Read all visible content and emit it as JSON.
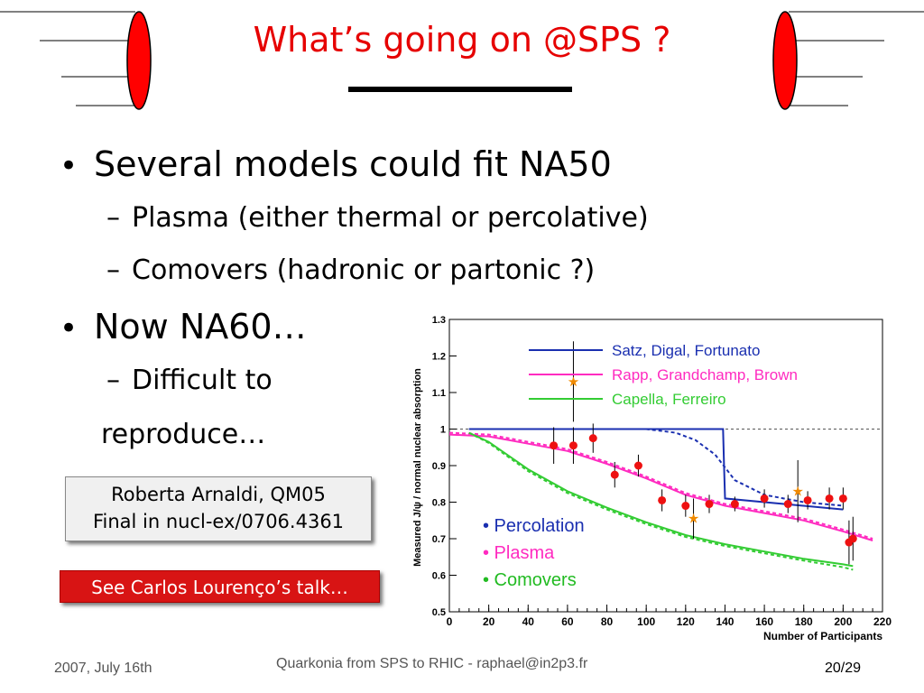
{
  "slide": {
    "title": "What’s going on @SPS ?",
    "bullets": [
      {
        "level": 1,
        "text": "Several models could fit NA50"
      },
      {
        "level": 2,
        "text": "Plasma (either thermal or percolative)"
      },
      {
        "level": 2,
        "text": "Comovers (hadronic or partonic ?)"
      },
      {
        "level": 1,
        "text": "Now NA60…"
      },
      {
        "level": 2,
        "text": "Difficult to"
      },
      {
        "level": 3,
        "text": "reproduce…"
      }
    ],
    "bullet_char": "•",
    "dash_char": "–",
    "reference": {
      "line1": "Roberta Arnaldi, QM05",
      "line2": "Final in nucl-ex/0706.4361"
    },
    "talk_button": "See Carlos Lourenço’s talk…",
    "footer": {
      "date": "2007, July 16th",
      "center": "Quarkonia from SPS to RHIC - raphael@in2p3.fr",
      "page": "20/29"
    },
    "colors": {
      "title": "#e60000",
      "accent_red": "#d81414"
    }
  },
  "chart_data": {
    "type": "scatter",
    "xlabel": "Number of Participants",
    "ylabel": "Measured J/ψ / normal nuclear absorption",
    "xlim": [
      0,
      220
    ],
    "ylim": [
      0.5,
      1.3
    ],
    "xticks": [
      "0",
      "20",
      "40",
      "60",
      "80",
      "100",
      "120",
      "140",
      "160",
      "180",
      "200",
      "220"
    ],
    "yticks": [
      "0.5",
      "0.6",
      "0.7",
      "0.8",
      "0.9",
      "1",
      "1.1",
      "1.2",
      "1.3"
    ],
    "reference_line": 1.0,
    "legend_models": [
      {
        "name": "Satz, Digal, Fortunato",
        "color": "#1a2fb0"
      },
      {
        "name": "Rapp, Grandchamp, Brown",
        "color": "#ff2bc0"
      },
      {
        "name": "Capella, Ferreiro",
        "color": "#33cc33"
      }
    ],
    "legend_labels": [
      {
        "text": "• Percolation",
        "color": "#1a2fb0"
      },
      {
        "text": "• Plasma",
        "color": "#ff2bc0"
      },
      {
        "text": "• Comovers",
        "color": "#22bb22"
      }
    ],
    "series": [
      {
        "name": "Satz, Digal, Fortunato",
        "color": "#1a2fb0",
        "x": [
          10,
          139,
          139.5,
          140,
          200
        ],
        "y": [
          1.0,
          1.0,
          0.9,
          0.81,
          0.78
        ]
      },
      {
        "color": "#1a2fb0",
        "dashed": true,
        "x": [
          10,
          60,
          100,
          115,
          125,
          135,
          145,
          160,
          180,
          200
        ],
        "y": [
          1.0,
          1.0,
          1.0,
          0.99,
          0.97,
          0.93,
          0.86,
          0.82,
          0.8,
          0.79
        ]
      },
      {
        "name": "Rapp, Grandchamp, Brown",
        "color": "#ff2bc0",
        "x": [
          0,
          20,
          40,
          60,
          80,
          100,
          120,
          140,
          160,
          180,
          200,
          215
        ],
        "y": [
          0.985,
          0.98,
          0.96,
          0.94,
          0.905,
          0.865,
          0.82,
          0.79,
          0.77,
          0.75,
          0.72,
          0.695
        ]
      },
      {
        "color": "#ff2bc0",
        "dashed": true,
        "x": [
          0,
          20,
          40,
          60,
          80,
          100,
          120,
          140,
          160,
          180,
          200,
          215
        ],
        "y": [
          0.99,
          0.985,
          0.965,
          0.945,
          0.91,
          0.87,
          0.825,
          0.795,
          0.775,
          0.755,
          0.725,
          0.7
        ]
      },
      {
        "name": "Capella, Ferreiro",
        "color": "#33cc33",
        "x": [
          10,
          20,
          40,
          60,
          80,
          100,
          120,
          140,
          160,
          180,
          200,
          205
        ],
        "y": [
          0.99,
          0.965,
          0.89,
          0.83,
          0.785,
          0.745,
          0.71,
          0.685,
          0.665,
          0.645,
          0.63,
          0.625
        ]
      },
      {
        "color": "#33cc33",
        "dashed": true,
        "x": [
          10,
          20,
          40,
          60,
          80,
          100,
          120,
          140,
          160,
          180,
          200,
          205
        ],
        "y": [
          0.99,
          0.962,
          0.885,
          0.825,
          0.78,
          0.74,
          0.705,
          0.68,
          0.66,
          0.64,
          0.622,
          0.615
        ]
      }
    ],
    "points_circles": [
      {
        "x": 53,
        "y": 0.955,
        "err": 0.05
      },
      {
        "x": 63,
        "y": 0.955,
        "err": 0.05
      },
      {
        "x": 73,
        "y": 0.975,
        "err": 0.04
      },
      {
        "x": 84,
        "y": 0.875,
        "err": 0.035
      },
      {
        "x": 96,
        "y": 0.9,
        "err": 0.03
      },
      {
        "x": 108,
        "y": 0.805,
        "err": 0.03
      },
      {
        "x": 120,
        "y": 0.79,
        "err": 0.03
      },
      {
        "x": 132,
        "y": 0.795,
        "err": 0.025
      },
      {
        "x": 145,
        "y": 0.795,
        "err": 0.02
      },
      {
        "x": 160,
        "y": 0.81,
        "err": 0.025
      },
      {
        "x": 172,
        "y": 0.795,
        "err": 0.025
      },
      {
        "x": 182,
        "y": 0.805,
        "err": 0.025
      },
      {
        "x": 193,
        "y": 0.81,
        "err": 0.03
      },
      {
        "x": 200,
        "y": 0.81,
        "err": 0.03
      },
      {
        "x": 203,
        "y": 0.69,
        "err": 0.06
      },
      {
        "x": 205,
        "y": 0.7,
        "err": 0.06
      }
    ],
    "points_stars": [
      {
        "x": 63,
        "y": 1.13,
        "err": 0.11
      },
      {
        "x": 124,
        "y": 0.755,
        "err": 0.055
      },
      {
        "x": 177,
        "y": 0.83,
        "err": 0.085
      }
    ]
  }
}
